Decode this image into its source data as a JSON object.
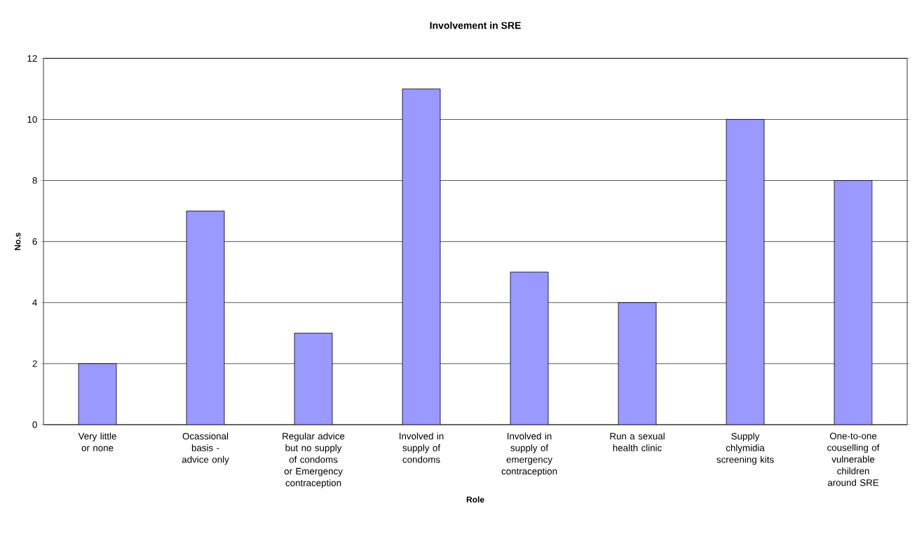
{
  "chart_data": {
    "type": "bar",
    "title": "Involvement in SRE",
    "xlabel": "Role",
    "ylabel": "No.s",
    "categories": [
      "Very little or none",
      "Ocassional basis - advice only",
      "Regular advice but no supply of condoms or Emergency contraception",
      "Involved in supply of condoms",
      "Involved in supply of emergency contraception",
      "Run a sexual health clinic",
      "Supply chlymidia screening kits",
      "One-to-one couselling of vulnerable children around SRE"
    ],
    "values": [
      2,
      7,
      3,
      11,
      5,
      4,
      10,
      8
    ],
    "color": "#9999ff",
    "ylim": [
      0,
      12
    ],
    "yticks": [
      0,
      2,
      4,
      6,
      8,
      10,
      12
    ],
    "grid": "y"
  }
}
